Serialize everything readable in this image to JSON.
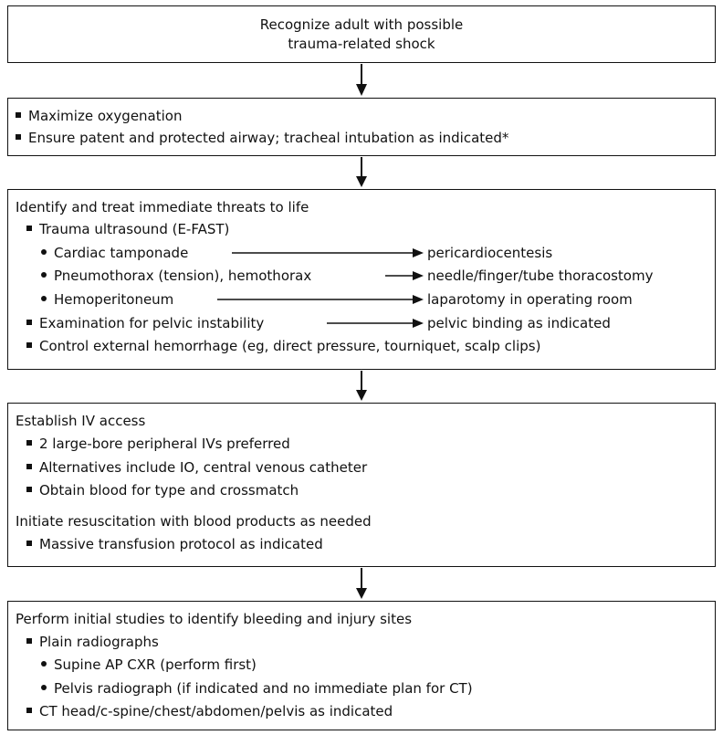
{
  "box1": {
    "line1": "Recognize adult with possible",
    "line2": "trauma-related shock"
  },
  "box2": {
    "items": [
      "Maximize oxygenation",
      "Ensure patent and protected airway; tracheal intubation as indicated*"
    ]
  },
  "box3": {
    "heading": "Identify and treat immediate threats to life",
    "ultrasound": "Trauma ultrasound (E-FAST)",
    "tamponade": "Cardiac tamponade",
    "tamponade_action": "pericardiocentesis",
    "pneumothorax": "Pneumothorax (tension), hemothorax",
    "pneumothorax_action": "needle/finger/tube thoracostomy",
    "hemoperitoneum": "Hemoperitoneum",
    "hemoperitoneum_action": "laparotomy in operating room",
    "pelvic": "Examination for pelvic instability",
    "pelvic_action": "pelvic binding as indicated",
    "hemorrhage": "Control external hemorrhage (eg, direct pressure, tourniquet, scalp clips)"
  },
  "box4": {
    "heading1": "Establish IV access",
    "items1": [
      "2 large-bore peripheral IVs preferred",
      "Alternatives include IO, central venous catheter",
      "Obtain blood for type and crossmatch"
    ],
    "heading2": "Initiate resuscitation with blood products as needed",
    "items2": [
      "Massive transfusion protocol as indicated"
    ]
  },
  "box5": {
    "heading": "Perform initial studies to identify bleeding and injury sites",
    "radiographs": "Plain radiographs",
    "cxr": "Supine AP CXR (perform first)",
    "pelvis": "Pelvis radiograph (if indicated and no immediate plan for CT)",
    "ct": "CT head/c-spine/chest/abdomen/pelvis as indicated"
  }
}
